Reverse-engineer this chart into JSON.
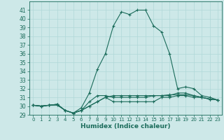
{
  "xlabel": "Humidex (Indice chaleur)",
  "ylabel": "",
  "xlim": [
    -0.5,
    23.5
  ],
  "ylim": [
    29,
    42
  ],
  "yticks": [
    29,
    30,
    31,
    32,
    33,
    34,
    35,
    36,
    37,
    38,
    39,
    40,
    41
  ],
  "xticks": [
    0,
    1,
    2,
    3,
    4,
    5,
    6,
    7,
    8,
    9,
    10,
    11,
    12,
    13,
    14,
    15,
    16,
    17,
    18,
    19,
    20,
    21,
    22,
    23
  ],
  "background_color": "#cde8e8",
  "line_color": "#1a6b5a",
  "grid_color": "#b0d8d8",
  "series": [
    [
      30.1,
      30.0,
      30.1,
      30.1,
      29.5,
      29.2,
      29.5,
      30.0,
      30.5,
      31.0,
      30.5,
      30.5,
      30.5,
      30.5,
      30.5,
      30.5,
      31.0,
      31.0,
      31.2,
      31.2,
      31.0,
      31.0,
      30.8,
      30.7
    ],
    [
      30.1,
      30.0,
      30.1,
      30.2,
      29.5,
      29.2,
      29.5,
      30.5,
      31.2,
      31.2,
      31.0,
      31.0,
      31.0,
      31.0,
      31.0,
      31.2,
      31.2,
      31.3,
      31.3,
      31.3,
      31.2,
      31.0,
      30.8,
      30.7
    ],
    [
      30.1,
      30.0,
      30.1,
      30.2,
      29.5,
      29.2,
      29.8,
      31.5,
      34.2,
      36.0,
      39.2,
      40.8,
      40.5,
      41.0,
      41.0,
      39.2,
      38.5,
      36.0,
      32.0,
      32.2,
      32.0,
      31.2,
      31.0,
      30.7
    ],
    [
      30.1,
      30.0,
      30.1,
      30.2,
      29.5,
      29.2,
      29.5,
      30.0,
      30.5,
      31.0,
      31.2,
      31.2,
      31.2,
      31.2,
      31.2,
      31.2,
      31.2,
      31.2,
      31.5,
      31.5,
      31.2,
      31.0,
      30.8,
      30.7
    ]
  ]
}
